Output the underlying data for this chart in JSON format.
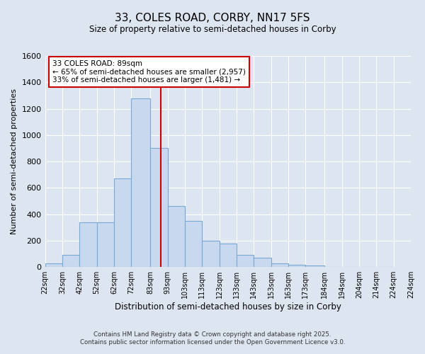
{
  "title": "33, COLES ROAD, CORBY, NN17 5FS",
  "subtitle": "Size of property relative to semi-detached houses in Corby",
  "xlabel": "Distribution of semi-detached houses by size in Corby",
  "ylabel": "Number of semi-detached properties",
  "bin_labels": [
    "22sqm",
    "32sqm",
    "42sqm",
    "52sqm",
    "62sqm",
    "72sqm",
    "83sqm",
    "93sqm",
    "103sqm",
    "113sqm",
    "123sqm",
    "133sqm",
    "143sqm",
    "153sqm",
    "163sqm",
    "173sqm",
    "184sqm",
    "194sqm",
    "204sqm",
    "214sqm",
    "224sqm"
  ],
  "bin_edges": [
    22,
    32,
    42,
    52,
    62,
    72,
    83,
    93,
    103,
    113,
    123,
    133,
    143,
    153,
    163,
    173,
    184,
    194,
    204,
    214,
    224
  ],
  "bar_heights": [
    30,
    90,
    340,
    340,
    670,
    1280,
    900,
    460,
    350,
    200,
    180,
    90,
    70,
    30,
    15,
    10,
    0,
    0,
    0,
    0
  ],
  "bar_color": "#c8d8ef",
  "bar_edge_color": "#7aaan4",
  "property_size": 89,
  "marker_line_color": "#cc0000",
  "ylim": [
    0,
    1600
  ],
  "yticks": [
    0,
    200,
    400,
    600,
    800,
    1000,
    1200,
    1400,
    1600
  ],
  "annotation_text": "33 COLES ROAD: 89sqm\n← 65% of semi-detached houses are smaller (2,957)\n33% of semi-detached houses are larger (1,481) →",
  "annotation_box_color": "#ffffff",
  "annotation_box_edge_color": "#cc0000",
  "footer_line1": "Contains HM Land Registry data © Crown copyright and database right 2025.",
  "footer_line2": "Contains public sector information licensed under the Open Government Licence v3.0.",
  "background_color": "#dde5f0",
  "plot_bg_color": "#dde5f0",
  "grid_color": "#ffffff",
  "bar_edge_color_real": "#7aaad4"
}
